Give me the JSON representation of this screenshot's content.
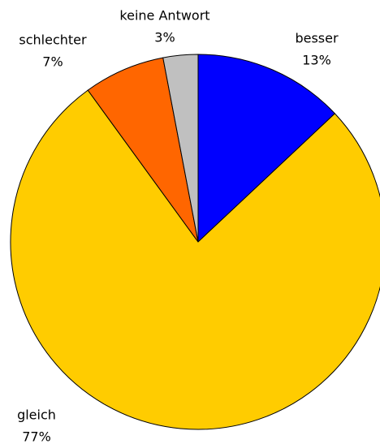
{
  "chart_data": {
    "type": "pie",
    "categories": [
      "besser",
      "gleich",
      "schlechter",
      "keine Antwort"
    ],
    "values": [
      13,
      77,
      7,
      3
    ],
    "value_labels": [
      "13%",
      "77%",
      "7%",
      "3%"
    ],
    "colors": [
      "#0000ff",
      "#ffcc00",
      "#ff6600",
      "#c0c0c0"
    ]
  }
}
